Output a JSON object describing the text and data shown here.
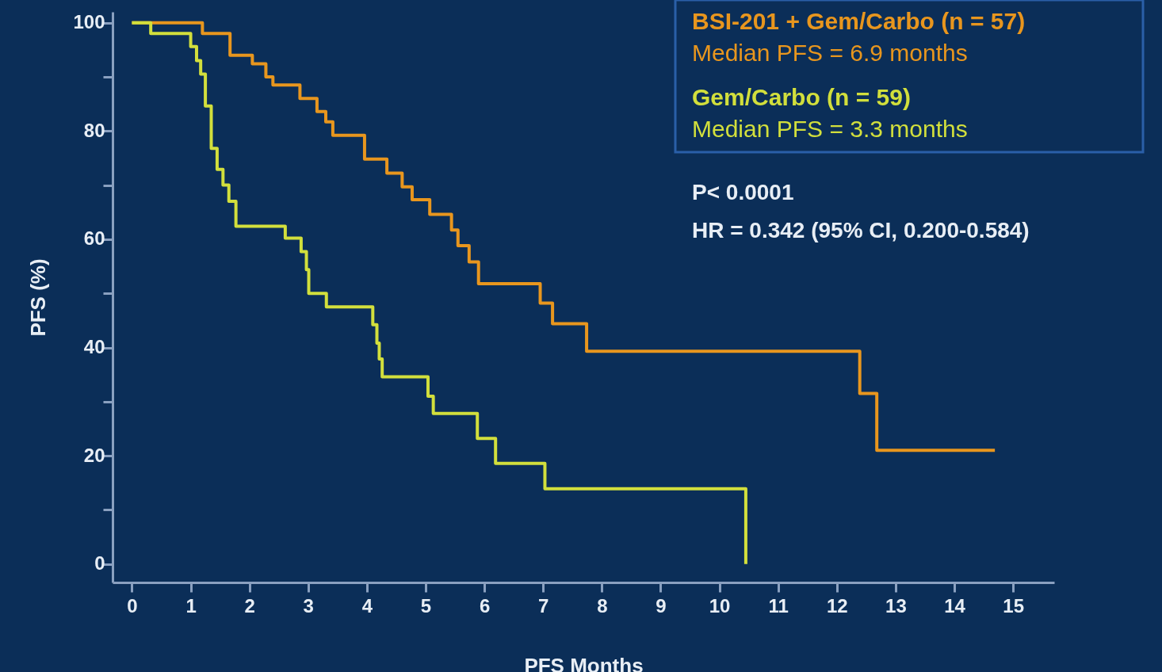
{
  "chart_data": {
    "type": "step",
    "xlabel": "PFS Months",
    "ylabel": "PFS (%)",
    "xlim": [
      -0.33,
      15.7
    ],
    "ylim": [
      -3.4,
      102
    ],
    "xticks": [
      0,
      1,
      2,
      3,
      4,
      5,
      6,
      7,
      8,
      9,
      10,
      11,
      12,
      13,
      14,
      15
    ],
    "yticks": [
      0,
      {
        "value": 10,
        "label": null
      },
      20,
      {
        "value": 30,
        "label": null
      },
      40,
      {
        "value": 50,
        "label": null
      },
      60,
      {
        "value": 70,
        "label": null
      },
      80,
      {
        "value": 90,
        "label": null
      },
      100
    ],
    "legend": "top right",
    "grid": false,
    "marker": "none",
    "line_style": "solid",
    "series": [
      {
        "name": "BSI-201 + Gem/Carbo (n = 57)",
        "color": "#e8961e",
        "x": [
          0,
          1.2,
          1.67,
          2.05,
          2.28,
          2.4,
          2.86,
          3.15,
          3.3,
          3.42,
          3.96,
          4.34,
          4.6,
          4.77,
          5.07,
          5.44,
          5.55,
          5.74,
          5.9,
          6.95,
          7.16,
          7.74,
          12.39,
          12.68,
          14.69
        ],
        "values": [
          100,
          98,
          94,
          92.4,
          90,
          88.5,
          86,
          83.6,
          81.7,
          79.2,
          74.8,
          72.2,
          69.7,
          67.3,
          64.6,
          61.7,
          58.8,
          55.8,
          51.8,
          48.2,
          44.4,
          39.3,
          31.5,
          21,
          21
        ]
      },
      {
        "name": "Gem/Carbo (n = 59)",
        "color": "#d2df3c",
        "x": [
          0,
          0.32,
          1.0,
          1.1,
          1.17,
          1.25,
          1.35,
          1.45,
          1.55,
          1.65,
          1.77,
          2.61,
          2.88,
          2.97,
          3.01,
          3.31,
          4.1,
          4.17,
          4.21,
          4.26,
          5.04,
          5.13,
          5.88,
          6.19,
          7.03,
          10.45
        ],
        "values": [
          100,
          98,
          95.6,
          93,
          90.5,
          84.6,
          76.8,
          72.9,
          70,
          67,
          62.4,
          60.2,
          57.7,
          54.4,
          50,
          47.5,
          44.2,
          40.8,
          37.9,
          34.6,
          31,
          27.8,
          23.2,
          18.6,
          13.9,
          0
        ]
      }
    ],
    "annotations": [
      "Median PFS = 6.9 months",
      "Median PFS = 3.3 months",
      "P< 0.0001",
      "HR = 0.342 (95% CI, 0.200-0.584)"
    ]
  }
}
